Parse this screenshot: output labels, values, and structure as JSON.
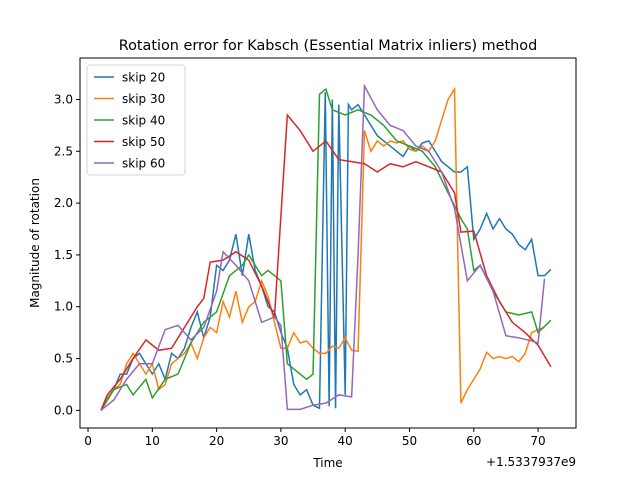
{
  "chart_data": {
    "type": "line",
    "title": "Rotation error for Kabsch (Essential Matrix inliers) method",
    "x_label": "Time",
    "y_label": "Magnitude of rotation",
    "x_offset_text": "+1.5337937e9",
    "xlim": [
      -1.25,
      75.9
    ],
    "ylim": [
      -0.17,
      3.4
    ],
    "xticks": [
      0,
      10,
      20,
      30,
      40,
      50,
      60,
      70
    ],
    "yticks": [
      {
        "value": 0,
        "label": "0.0"
      },
      {
        "value": 0.5,
        "label": "0.5"
      },
      {
        "value": 1,
        "label": "1.0"
      },
      {
        "value": 1.5,
        "label": "1.5"
      },
      {
        "value": 2,
        "label": "2.0"
      },
      {
        "value": 2.5,
        "label": "2.5"
      },
      {
        "value": 3,
        "label": "3.0"
      }
    ],
    "legend": "upper left",
    "grid": false,
    "series": [
      {
        "name": "skip 20",
        "color": "#1f77b4",
        "x": [
          2,
          3,
          4,
          5,
          6,
          7,
          8,
          9,
          10,
          11,
          12,
          13,
          14,
          15,
          16,
          17,
          18,
          19,
          20,
          21,
          22,
          23,
          24,
          25,
          26,
          27,
          28,
          29,
          30,
          31,
          32,
          33,
          34,
          35,
          36,
          36.9,
          37.5,
          38,
          38.5,
          39,
          40,
          40.5,
          41,
          42,
          43,
          44,
          45,
          46,
          47,
          48,
          49,
          50,
          51,
          52,
          53,
          54,
          55,
          56,
          57,
          58,
          59,
          60,
          61,
          62,
          63,
          64,
          65,
          66,
          67,
          68,
          69,
          70,
          71,
          72
        ],
        "values": [
          0,
          0.1,
          0.2,
          0.35,
          0.35,
          0.5,
          0.55,
          0.45,
          0.35,
          0.45,
          0.3,
          0.55,
          0.5,
          0.6,
          0.8,
          0.95,
          0.7,
          0.9,
          1.4,
          1.35,
          1.45,
          1.7,
          1.3,
          1.7,
          1.35,
          1.2,
          1.0,
          0.95,
          0.75,
          0.6,
          0.25,
          0.15,
          0.2,
          0.05,
          0.02,
          3.07,
          0.04,
          3.0,
          0.02,
          2.95,
          0.15,
          2.95,
          2.9,
          2.95,
          2.85,
          2.75,
          2.65,
          2.6,
          2.55,
          2.5,
          2.45,
          2.55,
          2.5,
          2.58,
          2.6,
          2.5,
          2.4,
          2.35,
          2.3,
          2.3,
          2.35,
          1.65,
          1.75,
          1.9,
          1.75,
          1.85,
          1.75,
          1.7,
          1.6,
          1.55,
          1.65,
          1.3,
          1.3,
          1.36
        ]
      },
      {
        "name": "skip 30",
        "color": "#ff7f0e",
        "x": [
          2,
          3,
          4,
          5,
          6,
          7,
          8,
          9,
          10,
          11,
          12,
          13,
          14,
          15,
          16,
          17,
          18,
          19,
          20,
          21,
          22,
          23,
          24,
          25,
          26,
          27,
          28,
          29,
          30,
          31,
          32,
          33,
          34,
          35,
          36,
          37,
          38,
          39,
          40,
          41,
          42,
          43,
          44,
          45,
          46,
          47,
          48,
          49,
          50,
          51,
          52,
          53,
          54,
          55,
          56,
          57,
          58,
          59,
          60,
          61,
          62,
          63,
          64,
          65,
          66,
          67,
          68,
          69,
          70,
          71
        ],
        "values": [
          0,
          0.12,
          0.2,
          0.25,
          0.45,
          0.55,
          0.45,
          0.35,
          0.45,
          0.2,
          0.25,
          0.45,
          0.5,
          0.55,
          0.65,
          0.5,
          0.7,
          0.8,
          0.75,
          1.05,
          0.9,
          1.15,
          0.85,
          1.0,
          1.05,
          1.25,
          1.1,
          0.85,
          0.6,
          0.6,
          0.75,
          0.65,
          0.67,
          0.6,
          0.55,
          0.55,
          0.62,
          0.6,
          0.7,
          0.58,
          0.57,
          2.7,
          2.5,
          2.6,
          2.55,
          2.6,
          2.58,
          2.6,
          2.52,
          2.5,
          2.55,
          2.5,
          2.6,
          2.8,
          3.0,
          3.1,
          0.07,
          0.2,
          0.3,
          0.4,
          0.56,
          0.5,
          0.52,
          0.5,
          0.52,
          0.47,
          0.55,
          0.75,
          0.78,
          0.8
        ]
      },
      {
        "name": "skip 40",
        "color": "#2ca02c",
        "x": [
          2,
          3,
          4,
          6,
          7,
          9,
          10,
          12,
          14,
          16,
          18,
          20,
          22,
          24,
          25,
          27,
          28,
          30,
          31,
          34,
          35,
          36,
          37,
          38,
          40,
          42,
          44,
          46,
          48,
          50,
          52,
          54,
          56,
          58,
          59,
          60,
          61,
          63,
          65,
          67,
          69,
          70,
          72
        ],
        "values": [
          0,
          0.1,
          0.2,
          0.25,
          0.15,
          0.3,
          0.12,
          0.3,
          0.35,
          0.65,
          0.85,
          0.95,
          1.3,
          1.4,
          1.5,
          1.3,
          1.35,
          1.25,
          0.45,
          0.3,
          0.35,
          3.05,
          3.1,
          2.9,
          2.85,
          2.9,
          2.85,
          2.75,
          2.6,
          2.55,
          2.5,
          2.35,
          2.1,
          1.85,
          1.75,
          1.35,
          1.4,
          1.15,
          0.95,
          0.92,
          0.95,
          0.75,
          0.87
        ]
      },
      {
        "name": "skip 50",
        "color": "#d62728",
        "x": [
          2,
          3,
          5,
          7,
          9,
          11,
          13,
          15,
          17,
          18,
          19,
          21,
          23,
          25,
          27,
          28,
          29,
          31,
          33,
          35,
          37,
          39,
          41,
          43,
          45,
          47,
          49,
          51,
          53,
          55,
          57,
          58,
          60,
          62,
          64,
          66,
          68,
          70,
          72
        ],
        "values": [
          0,
          0.15,
          0.3,
          0.5,
          0.68,
          0.58,
          0.6,
          0.8,
          1.0,
          1.08,
          1.43,
          1.45,
          1.53,
          1.45,
          1.2,
          1.05,
          0.9,
          2.85,
          2.7,
          2.5,
          2.6,
          2.42,
          2.4,
          2.38,
          2.3,
          2.38,
          2.35,
          2.4,
          2.35,
          2.3,
          2.1,
          1.72,
          1.73,
          1.3,
          1.05,
          0.85,
          0.75,
          0.63,
          0.42
        ]
      },
      {
        "name": "skip 60",
        "color": "#9467bd",
        "x": [
          2,
          4,
          6,
          8,
          10,
          12,
          14,
          16,
          18,
          20,
          21,
          23,
          25,
          27,
          29,
          30,
          31,
          33,
          35,
          37,
          39,
          41,
          42,
          43,
          45,
          47,
          49,
          51,
          53,
          55,
          57,
          59,
          61,
          63,
          65,
          67,
          69,
          70,
          71
        ],
        "values": [
          0,
          0.1,
          0.3,
          0.45,
          0.45,
          0.78,
          0.82,
          0.68,
          0.8,
          1.15,
          1.53,
          1.4,
          1.25,
          0.85,
          0.9,
          0.82,
          0.01,
          0.01,
          0.05,
          0.07,
          0.15,
          0.13,
          1.5,
          3.13,
          2.9,
          2.75,
          2.7,
          2.55,
          2.5,
          2.3,
          1.95,
          1.25,
          1.4,
          1.15,
          0.72,
          0.7,
          0.67,
          0.65,
          1.27
        ]
      }
    ]
  }
}
